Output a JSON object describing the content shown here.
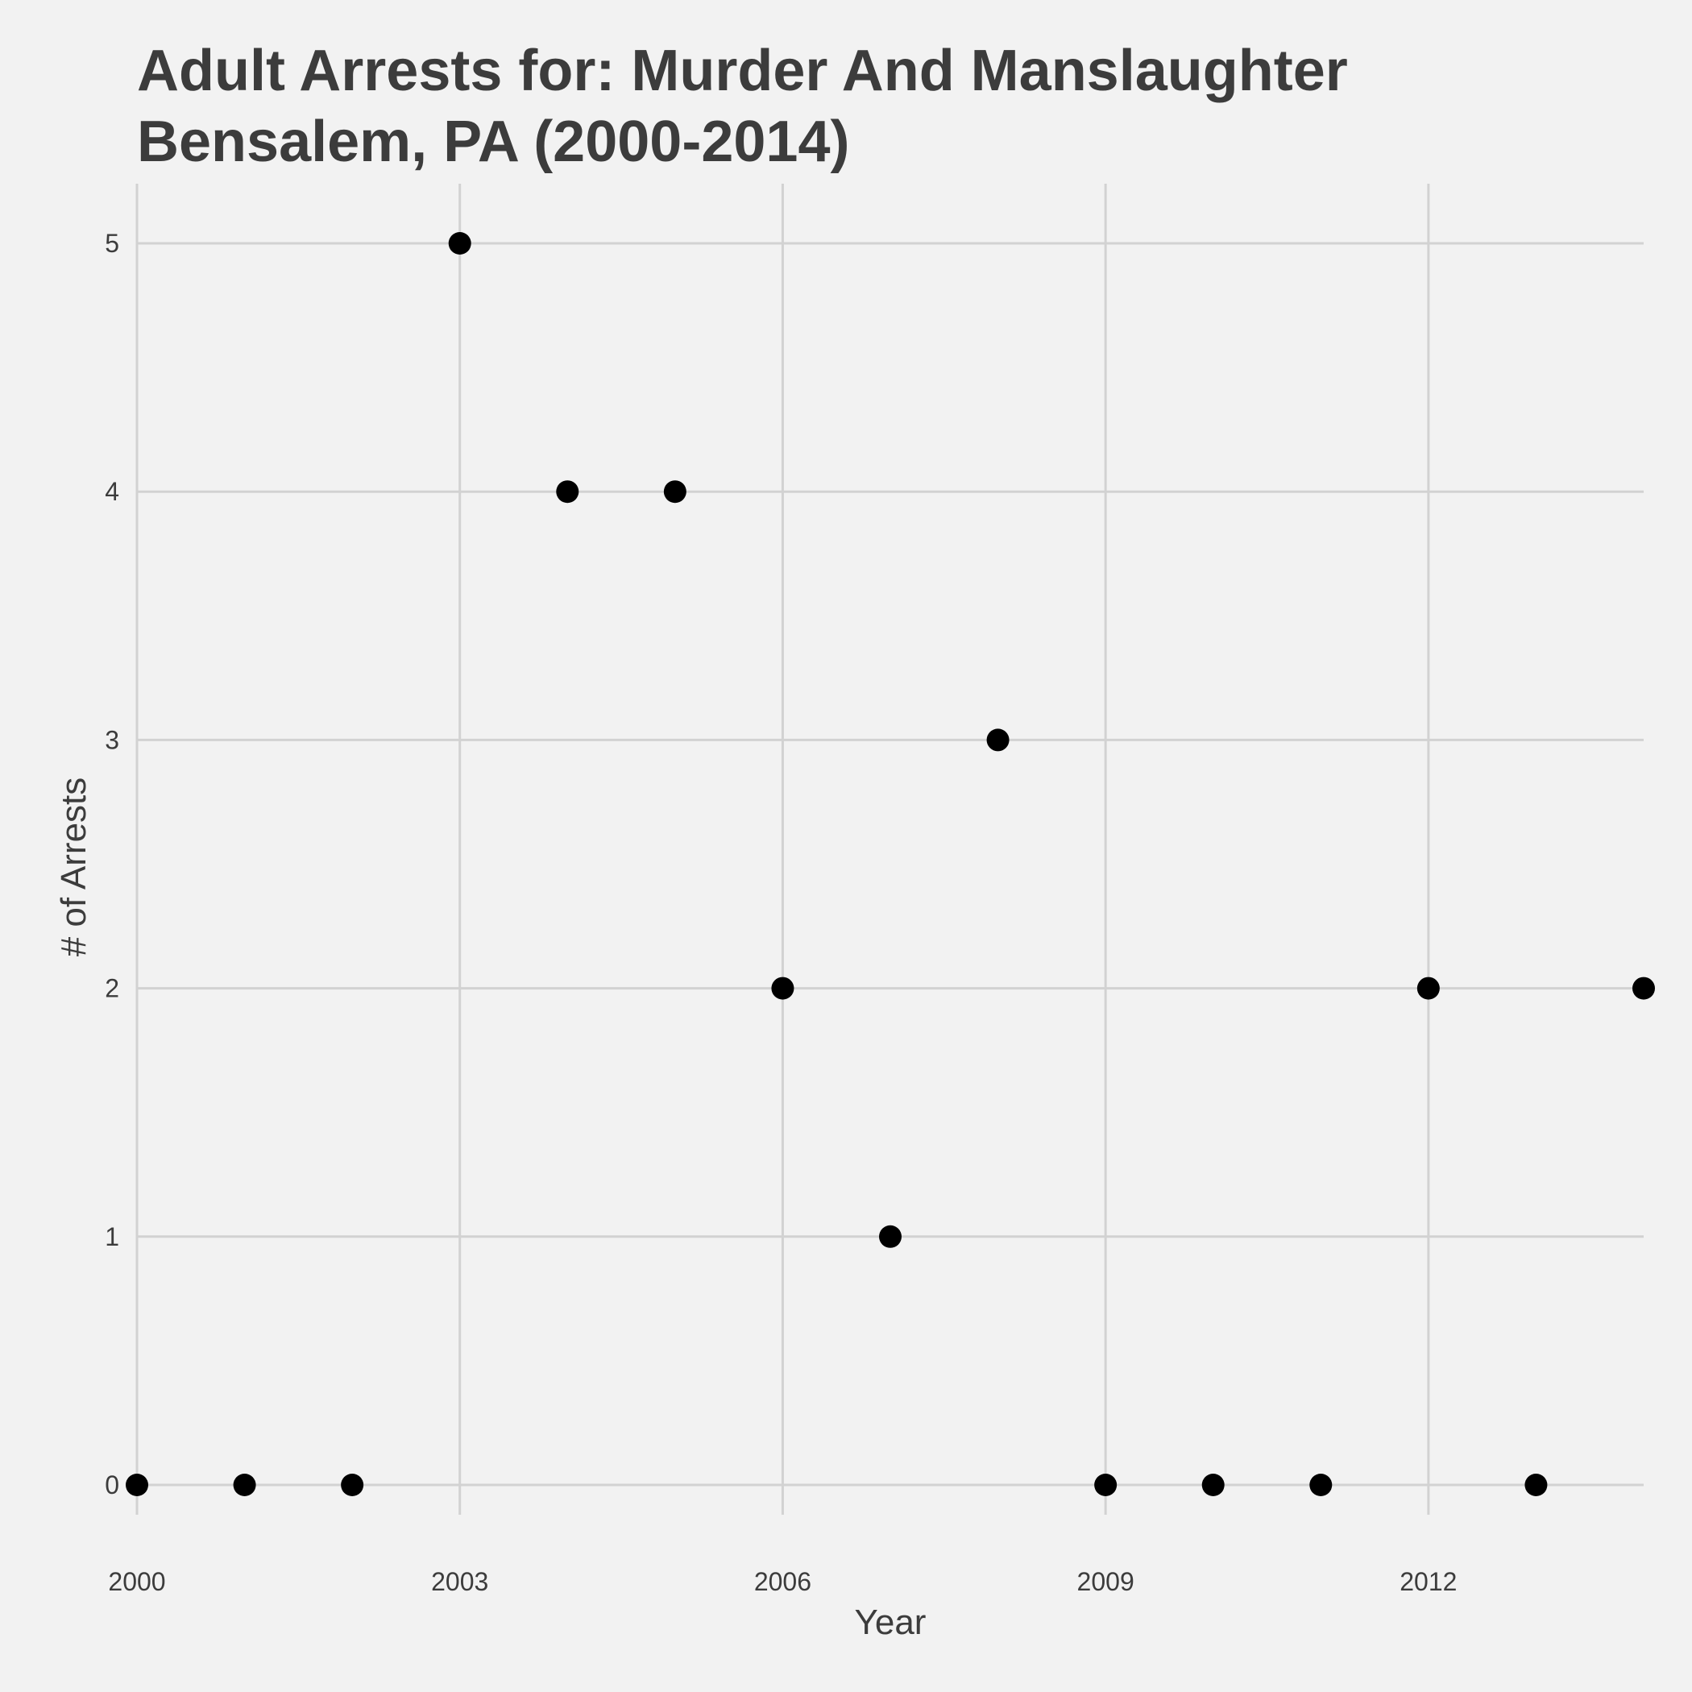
{
  "chart_data": {
    "type": "scatter",
    "title": "Adult Arrests for: Murder And Manslaughter",
    "subtitle": "Bensalem, PA (2000-2014)",
    "xlabel": "Year",
    "ylabel": "# of Arrests",
    "x": [
      2000,
      2001,
      2002,
      2003,
      2004,
      2005,
      2006,
      2007,
      2008,
      2009,
      2010,
      2011,
      2012,
      2013,
      2014
    ],
    "y": [
      0,
      0,
      0,
      5,
      4,
      4,
      2,
      1,
      3,
      0,
      0,
      0,
      2,
      0,
      2
    ],
    "xlim": [
      2000,
      2014
    ],
    "ylim": [
      0,
      5
    ],
    "xticks": [
      2000,
      2003,
      2006,
      2009,
      2012
    ],
    "yticks": [
      0,
      1,
      2,
      3,
      4,
      5
    ],
    "grid": true,
    "point_color": "#000000",
    "background_color": "#f2f2f2",
    "grid_color": "#d2d2d2"
  }
}
